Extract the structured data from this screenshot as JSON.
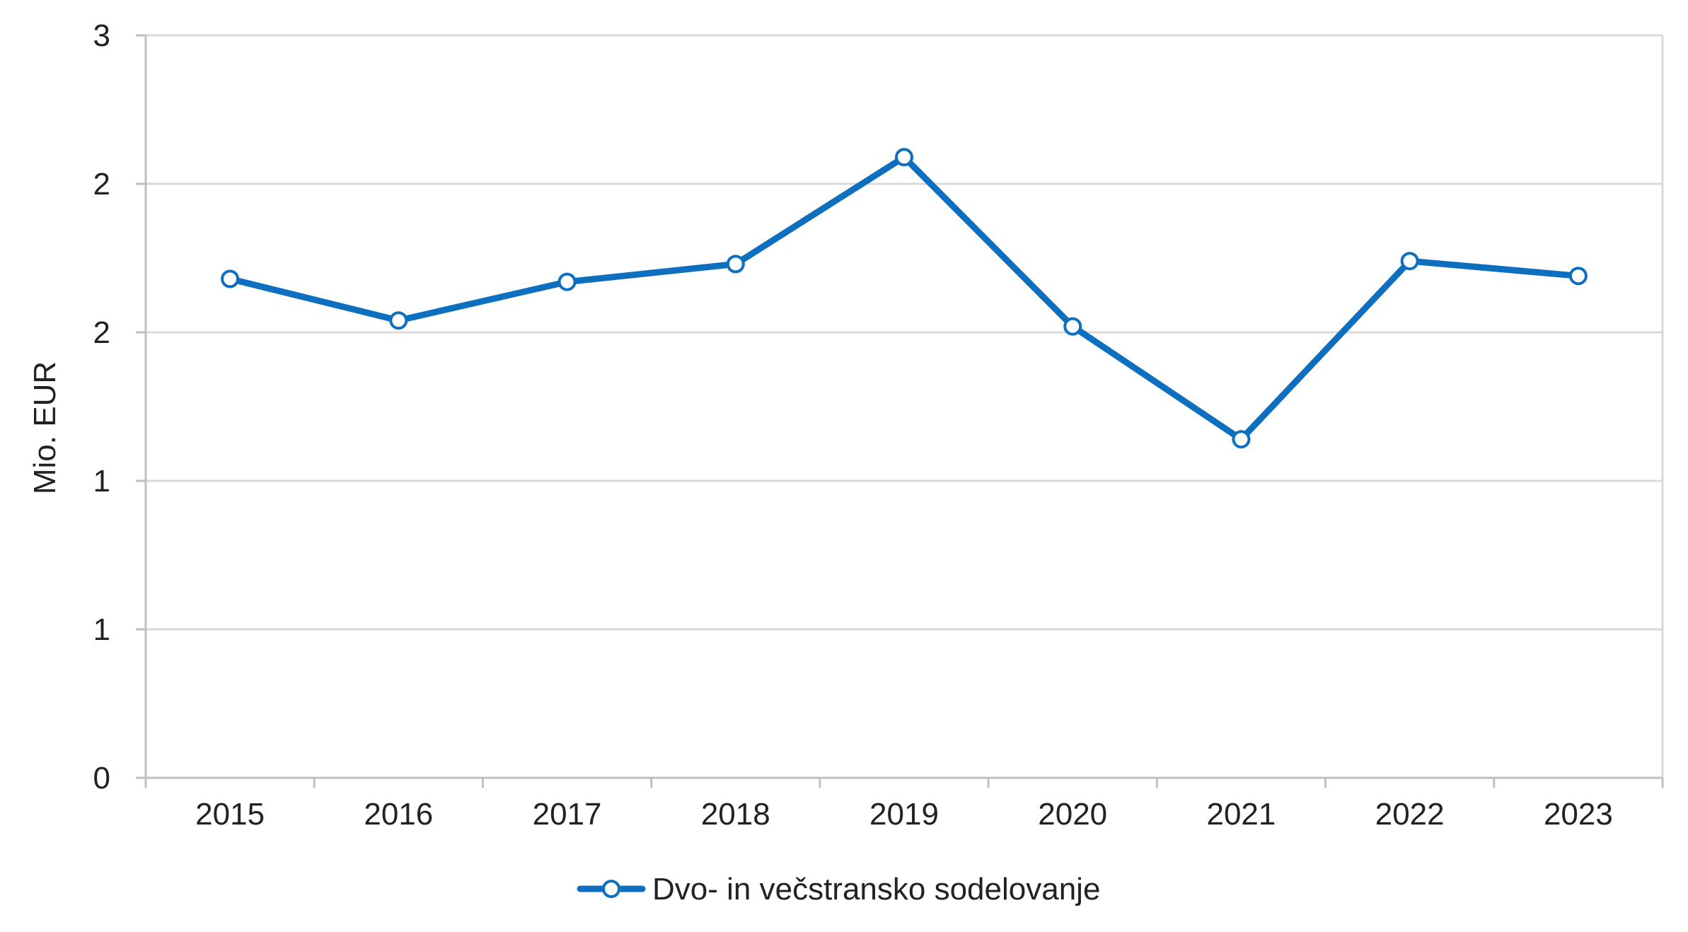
{
  "chart_data": {
    "type": "line",
    "title": "",
    "xlabel": "",
    "ylabel": "Mio. EUR",
    "categories": [
      "2015",
      "2016",
      "2017",
      "2018",
      "2019",
      "2020",
      "2021",
      "2022",
      "2023"
    ],
    "series": [
      {
        "name": "Dvo- in večstransko sodelovanje",
        "values": [
          1.68,
          1.54,
          1.67,
          1.73,
          2.09,
          1.52,
          1.14,
          1.74,
          1.69
        ]
      }
    ],
    "ylim": [
      0,
      2.5
    ],
    "yticks": [
      0,
      0.5,
      1,
      1.5,
      2,
      2.5
    ],
    "ytick_labels": [
      "0",
      "1",
      "1",
      "2",
      "2",
      "3"
    ],
    "grid": true,
    "legend_position": "bottom",
    "colors": {
      "series": "#0F6FBF",
      "grid": "#D9D9D9",
      "axis": "#BFBFBF",
      "marker_fill": "#ffffff"
    }
  }
}
